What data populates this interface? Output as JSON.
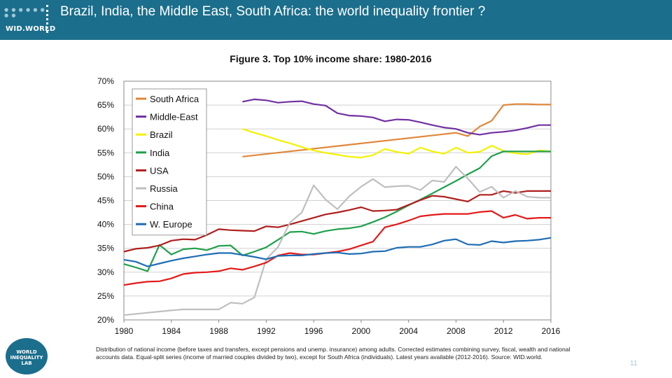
{
  "header": {
    "title": "Brazil, India, the Middle East, South Africa: the world inequality frontier ?",
    "logo_text": "WID.WORLD"
  },
  "figure_title": "Figure 3. Top 10% income share: 1980-2016",
  "note": "Distribution of national income (before taxes and transfers, except pensions and unemp. insurance) among adults. Corrected estimates combining survey, fiscal, wealth and national accounts data. Equal-split series (income of married couples divided by two), except for South Africa (individuals). Latest years available (2012-2016). Source: WID.world.",
  "badge_text": "WORLD INEQUALITY LAB",
  "page_number": "11",
  "chart_data": {
    "type": "line",
    "title": "Figure 3. Top 10% income share: 1980-2016",
    "xlabel": "",
    "ylabel": "",
    "xlim": [
      1980,
      2016
    ],
    "ylim": [
      0.2,
      0.7
    ],
    "x_ticks": [
      1980,
      1984,
      1988,
      1992,
      1996,
      2000,
      2004,
      2008,
      2012,
      2016
    ],
    "y_ticks": [
      0.2,
      0.25,
      0.3,
      0.35,
      0.4,
      0.45,
      0.5,
      0.55,
      0.6,
      0.65,
      0.7
    ],
    "y_tick_labels": [
      "20%",
      "25%",
      "30%",
      "35%",
      "40%",
      "45%",
      "50%",
      "55%",
      "60%",
      "65%",
      "70%"
    ],
    "grid": true,
    "legend_position": "top-left",
    "series": [
      {
        "name": "South Africa",
        "color": "#e0873a",
        "x": [
          1990,
          2008,
          2009,
          2010,
          2011,
          2012,
          2013,
          2014,
          2015,
          2016
        ],
        "y": [
          0.542,
          0.592,
          0.585,
          0.605,
          0.617,
          0.65,
          0.652,
          0.652,
          0.651,
          0.651
        ]
      },
      {
        "name": "Middle-East",
        "color": "#7030a0",
        "x": [
          1990,
          1991,
          1992,
          1993,
          1994,
          1995,
          1996,
          1997,
          1998,
          1999,
          2000,
          2001,
          2002,
          2003,
          2004,
          2005,
          2006,
          2007,
          2008,
          2009,
          2010,
          2011,
          2012,
          2013,
          2014,
          2015,
          2016
        ],
        "y": [
          0.657,
          0.662,
          0.66,
          0.655,
          0.657,
          0.658,
          0.652,
          0.649,
          0.633,
          0.628,
          0.627,
          0.624,
          0.616,
          0.62,
          0.619,
          0.614,
          0.608,
          0.603,
          0.6,
          0.592,
          0.588,
          0.592,
          0.594,
          0.597,
          0.602,
          0.608,
          0.608
        ]
      },
      {
        "name": "Brazil",
        "color": "#f2f200",
        "x": [
          1990,
          1991,
          1992,
          1993,
          1994,
          1995,
          1996,
          1997,
          1998,
          1999,
          2000,
          2001,
          2002,
          2003,
          2004,
          2005,
          2006,
          2007,
          2008,
          2009,
          2010,
          2011,
          2012,
          2013,
          2014,
          2015,
          2016
        ],
        "y": [
          0.6,
          0.592,
          0.585,
          0.577,
          0.57,
          0.562,
          0.555,
          0.55,
          0.546,
          0.542,
          0.54,
          0.545,
          0.558,
          0.552,
          0.548,
          0.561,
          0.553,
          0.548,
          0.561,
          0.55,
          0.552,
          0.565,
          0.554,
          0.549,
          0.547,
          0.555,
          0.553
        ]
      },
      {
        "name": "India",
        "color": "#1fa04c",
        "x": [
          1980,
          1981,
          1982,
          1983,
          1984,
          1985,
          1986,
          1987,
          1988,
          1989,
          1990,
          1991,
          1992,
          1993,
          1994,
          1995,
          1996,
          1997,
          1998,
          1999,
          2000,
          2001,
          2002,
          2003,
          2004,
          2005,
          2006,
          2007,
          2008,
          2009,
          2010,
          2011,
          2012,
          2013,
          2014,
          2015,
          2016
        ],
        "y": [
          0.317,
          0.31,
          0.302,
          0.357,
          0.337,
          0.348,
          0.35,
          0.346,
          0.355,
          0.356,
          0.335,
          0.343,
          0.352,
          0.368,
          0.384,
          0.385,
          0.38,
          0.386,
          0.39,
          0.392,
          0.396,
          0.405,
          0.415,
          0.427,
          0.44,
          0.452,
          0.465,
          0.478,
          0.491,
          0.505,
          0.518,
          0.543,
          0.553,
          0.553,
          0.553,
          0.553,
          0.553
        ]
      },
      {
        "name": "USA",
        "color": "#b01f1f",
        "x": [
          1980,
          1981,
          1982,
          1983,
          1984,
          1985,
          1986,
          1987,
          1988,
          1989,
          1990,
          1991,
          1992,
          1993,
          1994,
          1995,
          1996,
          1997,
          1998,
          1999,
          2000,
          2001,
          2002,
          2003,
          2004,
          2005,
          2006,
          2007,
          2008,
          2009,
          2010,
          2011,
          2012,
          2013,
          2014,
          2015,
          2016
        ],
        "y": [
          0.343,
          0.349,
          0.351,
          0.356,
          0.366,
          0.369,
          0.368,
          0.378,
          0.39,
          0.388,
          0.387,
          0.386,
          0.396,
          0.394,
          0.4,
          0.407,
          0.414,
          0.421,
          0.425,
          0.43,
          0.436,
          0.428,
          0.429,
          0.431,
          0.441,
          0.451,
          0.46,
          0.458,
          0.453,
          0.448,
          0.462,
          0.462,
          0.47,
          0.466,
          0.47,
          0.47,
          0.47
        ]
      },
      {
        "name": "Russia",
        "color": "#bfbfbf",
        "x": [
          1980,
          1984,
          1985,
          1988,
          1989,
          1990,
          1991,
          1992,
          1993,
          1994,
          1995,
          1996,
          1997,
          1998,
          1999,
          2000,
          2001,
          2002,
          2003,
          2004,
          2005,
          2006,
          2007,
          2008,
          2009,
          2010,
          2011,
          2012,
          2013,
          2014,
          2015,
          2016
        ],
        "y": [
          0.21,
          0.22,
          0.222,
          0.222,
          0.236,
          0.234,
          0.247,
          0.327,
          0.353,
          0.404,
          0.425,
          0.482,
          0.452,
          0.432,
          0.459,
          0.479,
          0.495,
          0.478,
          0.48,
          0.481,
          0.472,
          0.492,
          0.489,
          0.521,
          0.496,
          0.468,
          0.479,
          0.456,
          0.47,
          0.458,
          0.456,
          0.456
        ]
      },
      {
        "name": "China",
        "color": "#e31a1a",
        "x": [
          1980,
          1981,
          1982,
          1983,
          1984,
          1985,
          1986,
          1987,
          1988,
          1989,
          1990,
          1991,
          1992,
          1993,
          1994,
          1995,
          1996,
          1997,
          1998,
          1999,
          2000,
          2001,
          2002,
          2003,
          2004,
          2005,
          2006,
          2007,
          2008,
          2009,
          2010,
          2011,
          2012,
          2013,
          2014,
          2015,
          2016
        ],
        "y": [
          0.273,
          0.277,
          0.28,
          0.281,
          0.287,
          0.296,
          0.299,
          0.3,
          0.302,
          0.308,
          0.305,
          0.312,
          0.32,
          0.335,
          0.34,
          0.337,
          0.337,
          0.34,
          0.343,
          0.348,
          0.356,
          0.364,
          0.394,
          0.4,
          0.408,
          0.417,
          0.42,
          0.422,
          0.422,
          0.422,
          0.426,
          0.428,
          0.414,
          0.42,
          0.412,
          0.414,
          0.414
        ]
      },
      {
        "name": "W. Europe",
        "color": "#1f6db3",
        "x": [
          1980,
          1981,
          1982,
          1983,
          1984,
          1985,
          1986,
          1987,
          1988,
          1989,
          1990,
          1991,
          1992,
          1993,
          1994,
          1995,
          1996,
          1997,
          1998,
          1999,
          2000,
          2001,
          2002,
          2003,
          2004,
          2005,
          2006,
          2007,
          2008,
          2009,
          2010,
          2011,
          2012,
          2013,
          2014,
          2015,
          2016
        ],
        "y": [
          0.326,
          0.322,
          0.312,
          0.318,
          0.324,
          0.329,
          0.333,
          0.337,
          0.34,
          0.34,
          0.336,
          0.332,
          0.327,
          0.334,
          0.335,
          0.335,
          0.338,
          0.34,
          0.341,
          0.338,
          0.339,
          0.343,
          0.344,
          0.351,
          0.353,
          0.353,
          0.358,
          0.366,
          0.369,
          0.358,
          0.357,
          0.365,
          0.362,
          0.365,
          0.366,
          0.368,
          0.372
        ]
      }
    ]
  }
}
